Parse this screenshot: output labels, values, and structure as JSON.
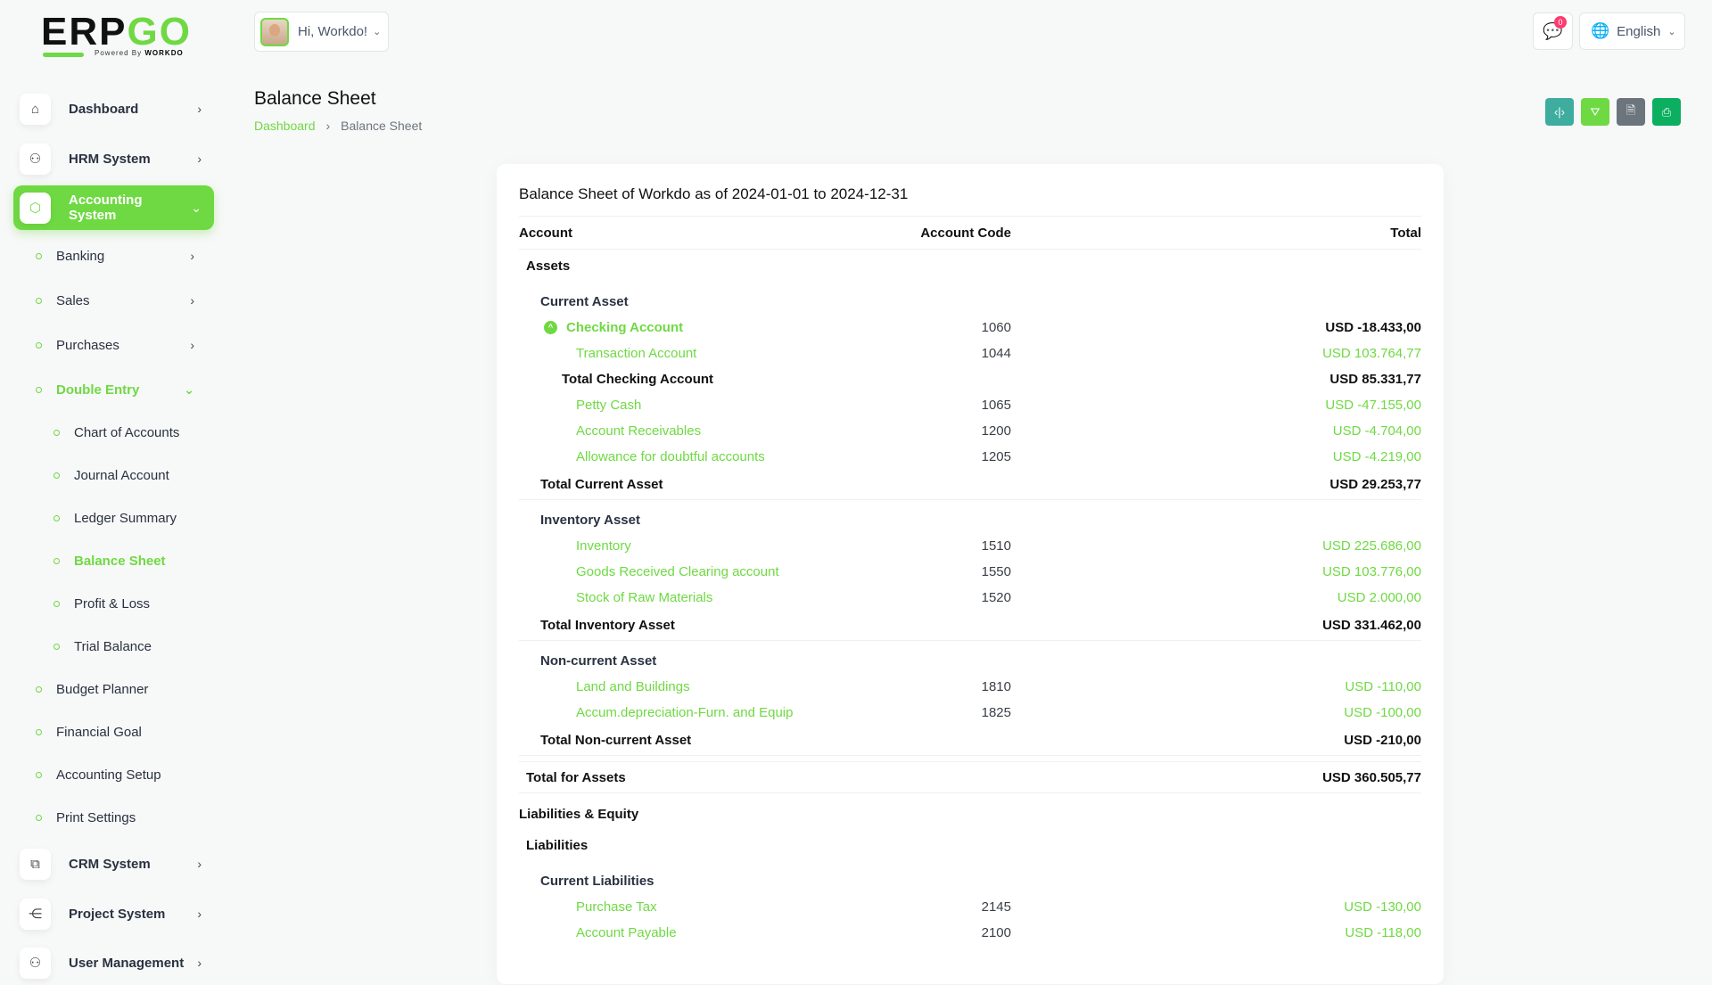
{
  "logo": {
    "text_black": "ERP",
    "text_green": "GO",
    "powered": "Powered By",
    "brand": "WORKDO"
  },
  "header": {
    "greeting": "Hi, Workdo!",
    "notification_count": "0",
    "language": "English"
  },
  "colors": {
    "accent": "#6fd943",
    "teal": "#3ead9f",
    "gray": "#6c757d",
    "dark_green": "#0caf60"
  },
  "sidebar": {
    "top": [
      {
        "label": "Dashboard",
        "icon": "home-icon"
      },
      {
        "label": "HRM System",
        "icon": "user-icon"
      },
      {
        "label": "Accounting System",
        "icon": "box-icon",
        "active": true
      }
    ],
    "subs": [
      {
        "label": "Banking",
        "chev": "›"
      },
      {
        "label": "Sales",
        "chev": "›"
      },
      {
        "label": "Purchases",
        "chev": "›"
      },
      {
        "label": "Double Entry",
        "chev": "⌄",
        "on": true
      },
      {
        "label": "Chart of Accounts",
        "lvl": 2
      },
      {
        "label": "Journal Account",
        "lvl": 2
      },
      {
        "label": "Ledger Summary",
        "lvl": 2
      },
      {
        "label": "Balance Sheet",
        "lvl": 2,
        "on": true
      },
      {
        "label": "Profit & Loss",
        "lvl": 2
      },
      {
        "label": "Trial Balance",
        "lvl": 2
      },
      {
        "label": "Budget Planner"
      },
      {
        "label": "Financial Goal"
      },
      {
        "label": "Accounting Setup"
      },
      {
        "label": "Print Settings"
      }
    ],
    "bottom": [
      {
        "label": "CRM System",
        "icon": "crm-icon"
      },
      {
        "label": "Project System",
        "icon": "share-icon"
      },
      {
        "label": "User Management",
        "icon": "users-icon"
      }
    ]
  },
  "page": {
    "title": "Balance Sheet",
    "breadcrumb": [
      "Dashboard",
      "Balance Sheet"
    ]
  },
  "actions": [
    {
      "name": "collapse-button",
      "icon": "‹|›",
      "color": "#3ead9f"
    },
    {
      "name": "filter-button",
      "icon": "⛛",
      "color": "#6fd943"
    },
    {
      "name": "export-button",
      "icon": "🗎",
      "color": "#6c757d"
    },
    {
      "name": "print-button",
      "icon": "⎙",
      "color": "#0caf60"
    }
  ],
  "report": {
    "title": "Balance Sheet of Workdo as of 2024-01-01 to 2024-12-31",
    "columns": [
      "Account",
      "Account Code",
      "Total"
    ],
    "rows": [
      {
        "type": "sec",
        "account": "Assets"
      },
      {
        "type": "grp",
        "account": "Current Asset"
      },
      {
        "type": "parent",
        "account": "Checking Account",
        "code": "1060",
        "total": "USD -18.433,00"
      },
      {
        "type": "acct",
        "account": "Transaction Account",
        "code": "1044",
        "total": "USD 103.764,77"
      },
      {
        "type": "subtotal",
        "account": "Total Checking Account",
        "total": "USD 85.331,77"
      },
      {
        "type": "acct",
        "account": "Petty Cash",
        "code": "1065",
        "total": "USD -47.155,00"
      },
      {
        "type": "acct",
        "account": "Account Receivables",
        "code": "1200",
        "total": "USD -4.704,00"
      },
      {
        "type": "acct",
        "account": "Allowance for doubtful accounts",
        "code": "1205",
        "total": "USD -4.219,00"
      },
      {
        "type": "total",
        "account": "Total Current Asset",
        "total": "USD 29.253,77"
      },
      {
        "type": "grp",
        "account": "Inventory Asset"
      },
      {
        "type": "acct",
        "account": "Inventory",
        "code": "1510",
        "total": "USD 225.686,00"
      },
      {
        "type": "acct",
        "account": "Goods Received Clearing account",
        "code": "1550",
        "total": "USD 103.776,00"
      },
      {
        "type": "acct",
        "account": "Stock of Raw Materials",
        "code": "1520",
        "total": "USD 2.000,00"
      },
      {
        "type": "total",
        "account": "Total Inventory Asset",
        "total": "USD 331.462,00"
      },
      {
        "type": "grp",
        "account": "Non-current Asset"
      },
      {
        "type": "acct",
        "account": "Land and Buildings",
        "code": "1810",
        "total": "USD -110,00"
      },
      {
        "type": "acct",
        "account": "Accum.depreciation-Furn. and Equip",
        "code": "1825",
        "total": "USD -100,00"
      },
      {
        "type": "total",
        "account": "Total Non-current Asset",
        "total": "USD -210,00"
      },
      {
        "type": "grandtotal",
        "account": "Total for Assets",
        "total": "USD 360.505,77"
      },
      {
        "type": "bigsec",
        "account": "Liabilities & Equity"
      },
      {
        "type": "sec",
        "account": "Liabilities"
      },
      {
        "type": "grp",
        "account": "Current Liabilities"
      },
      {
        "type": "acct",
        "account": "Purchase Tax",
        "code": "2145",
        "total": "USD -130,00"
      },
      {
        "type": "acct",
        "account": "Account Payable",
        "code": "2100",
        "total": "USD -118,00"
      }
    ]
  }
}
